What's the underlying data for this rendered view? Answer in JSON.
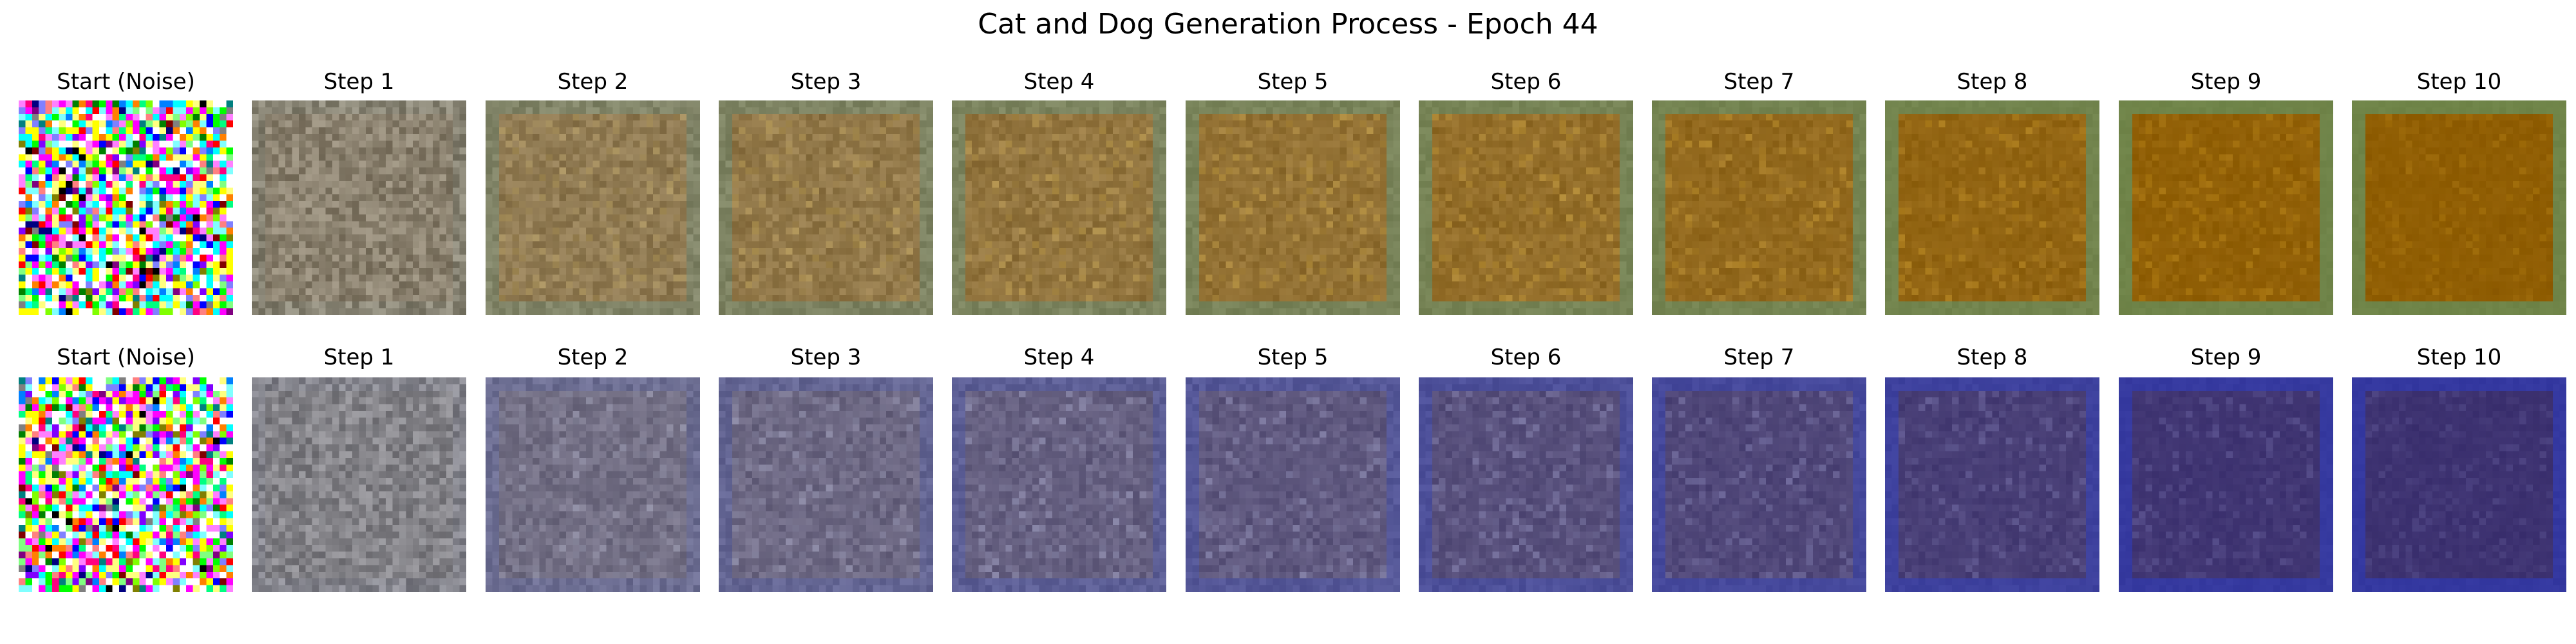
{
  "figure": {
    "title": "Cat and Dog Generation Process - Epoch 44"
  },
  "rows": [
    {
      "panels": [
        {
          "title": "Start (Noise)",
          "kind": "noise"
        },
        {
          "title": "Step 1",
          "kind": "denoise",
          "step": 1
        },
        {
          "title": "Step 2",
          "kind": "denoise",
          "step": 2
        },
        {
          "title": "Step 3",
          "kind": "denoise",
          "step": 3
        },
        {
          "title": "Step 4",
          "kind": "denoise",
          "step": 4
        },
        {
          "title": "Step 5",
          "kind": "denoise",
          "step": 5
        },
        {
          "title": "Step 6",
          "kind": "denoise",
          "step": 6
        },
        {
          "title": "Step 7",
          "kind": "denoise",
          "step": 7
        },
        {
          "title": "Step 8",
          "kind": "denoise",
          "step": 8
        },
        {
          "title": "Step 9",
          "kind": "denoise",
          "step": 9
        },
        {
          "title": "Step 10",
          "kind": "denoise",
          "step": 10
        }
      ],
      "colors": {
        "gray": "#8a8478",
        "base": "#8c5a00",
        "mid": "#b37f20",
        "highlight": "#e0a81d",
        "border": "#6f8448"
      }
    },
    {
      "panels": [
        {
          "title": "Start (Noise)",
          "kind": "noise"
        },
        {
          "title": "Step 1",
          "kind": "denoise",
          "step": 1
        },
        {
          "title": "Step 2",
          "kind": "denoise",
          "step": 2
        },
        {
          "title": "Step 3",
          "kind": "denoise",
          "step": 3
        },
        {
          "title": "Step 4",
          "kind": "denoise",
          "step": 4
        },
        {
          "title": "Step 5",
          "kind": "denoise",
          "step": 5
        },
        {
          "title": "Step 6",
          "kind": "denoise",
          "step": 6
        },
        {
          "title": "Step 7",
          "kind": "denoise",
          "step": 7
        },
        {
          "title": "Step 8",
          "kind": "denoise",
          "step": 8
        },
        {
          "title": "Step 9",
          "kind": "denoise",
          "step": 9
        },
        {
          "title": "Step 10",
          "kind": "denoise",
          "step": 10
        }
      ],
      "colors": {
        "gray": "#8a8a8a",
        "base": "#3a2f6e",
        "mid": "#5a4f8a",
        "highlight": "#9090d0",
        "border": "#3438a0"
      }
    }
  ]
}
